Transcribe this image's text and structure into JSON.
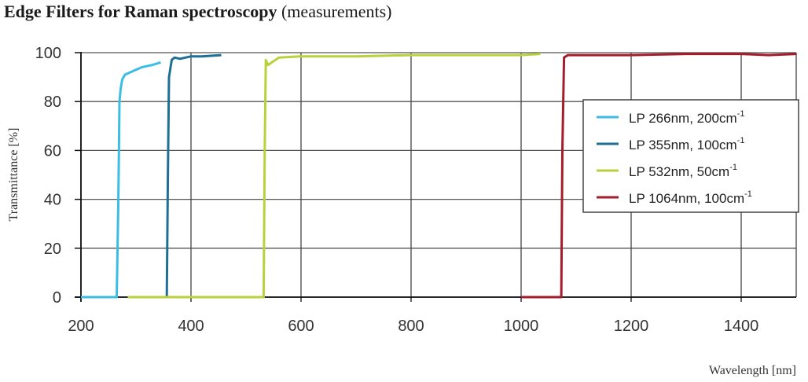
{
  "title": {
    "bold": "Edge Filters for Raman spectroscopy",
    "normal": "(measurements)"
  },
  "chart_data": {
    "type": "line",
    "title": "Edge Filters for Raman spectroscopy (measurements)",
    "xlabel": "Wavelength [nm]",
    "ylabel": "Transmittance [%]",
    "xlim": [
      200,
      1500
    ],
    "ylim": [
      0,
      100
    ],
    "xticks": [
      "200",
      "400",
      "600",
      "800",
      "1000",
      "1200",
      "1400"
    ],
    "yticks": [
      "0",
      "20",
      "40",
      "60",
      "80",
      "100"
    ],
    "grid": true,
    "legend_position": "right-center",
    "series": [
      {
        "name": "LP 266nm, 200cm-1",
        "color": "#3bbde4",
        "x": [
          200,
          265,
          268,
          270,
          272,
          275,
          280,
          290,
          300,
          310,
          320,
          330,
          345
        ],
        "y": [
          0,
          0,
          40,
          80,
          85,
          89,
          91,
          92,
          93,
          94,
          94.5,
          95,
          96
        ]
      },
      {
        "name": "LP 355nm, 100cm-1",
        "color": "#1e6f94",
        "x": [
          310,
          356,
          358,
          360,
          365,
          370,
          380,
          400,
          420,
          455
        ],
        "y": [
          0,
          0,
          50,
          90,
          97,
          98,
          97.5,
          98.5,
          98.5,
          99
        ]
      },
      {
        "name": "LP 532nm, 50cm-1",
        "color": "#b9d23c",
        "x": [
          285,
          532,
          534,
          536,
          540,
          560,
          600,
          700,
          800,
          900,
          1000,
          1035
        ],
        "y": [
          0,
          0,
          60,
          97,
          95,
          98,
          98.5,
          98.5,
          99,
          99,
          99,
          99.5
        ]
      },
      {
        "name": "LP 1064nm, 100cm-1",
        "color": "#a51d2d",
        "x": [
          1000,
          1073,
          1075,
          1078,
          1085,
          1100,
          1200,
          1300,
          1400,
          1450,
          1500
        ],
        "y": [
          0,
          0,
          60,
          98,
          99,
          99,
          99,
          99.5,
          99.5,
          99,
          99.5
        ]
      }
    ]
  },
  "legend": [
    {
      "label": "LP 266nm, 200cm",
      "sup": "-1",
      "color": "#3bbde4"
    },
    {
      "label": "LP 355nm, 100cm",
      "sup": "-1",
      "color": "#1e6f94"
    },
    {
      "label": "LP 532nm, 50cm",
      "sup": "-1",
      "color": "#b9d23c"
    },
    {
      "label": "LP 1064nm, 100cm",
      "sup": "-1",
      "color": "#a51d2d"
    }
  ]
}
